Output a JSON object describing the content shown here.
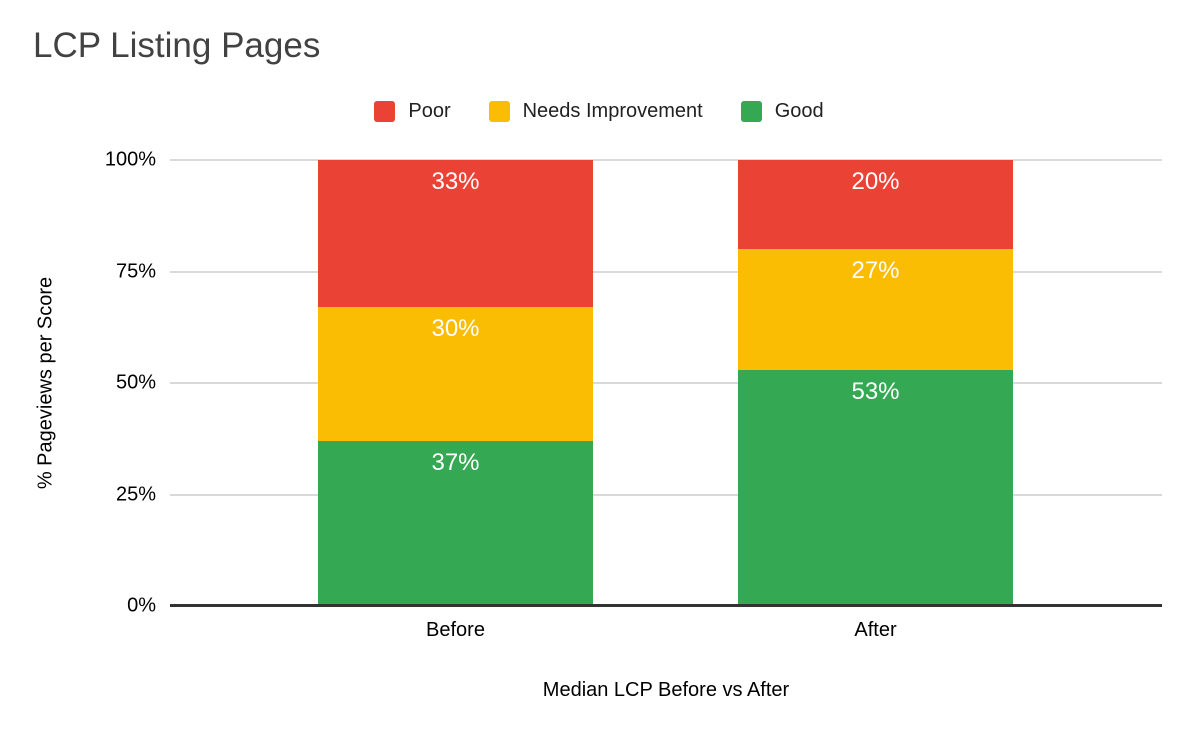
{
  "chart_data": {
    "type": "bar",
    "stacked": true,
    "title": "LCP Listing Pages",
    "xlabel": "Median LCP Before vs After",
    "ylabel": "% Pageviews per Score",
    "categories": [
      "Before",
      "After"
    ],
    "series": [
      {
        "name": "Poor",
        "color": "#EA4335",
        "values": [
          33,
          20
        ],
        "labels": [
          "33%",
          "20%"
        ]
      },
      {
        "name": "Needs Improvement",
        "color": "#FBBC04",
        "values": [
          30,
          27
        ],
        "labels": [
          "30%",
          "27%"
        ]
      },
      {
        "name": "Good",
        "color": "#34A853",
        "values": [
          37,
          53
        ],
        "labels": [
          "37%",
          "53%"
        ]
      }
    ],
    "y_ticks": [
      "100%",
      "75%",
      "50%",
      "25%",
      "0%"
    ],
    "ylim": [
      0,
      100
    ],
    "grid": true,
    "legend_position": "top",
    "colors": {
      "segment_label": "#ffffff",
      "gridline": "#d9d9d9",
      "axis_line": "#333333",
      "title": "#424242",
      "background": "#ffffff"
    }
  }
}
